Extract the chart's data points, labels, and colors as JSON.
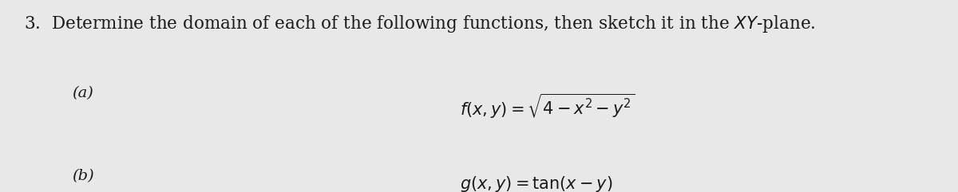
{
  "background_color": "#e8e8e8",
  "title_text": "3.  Determine the domain of each of the following functions, then sketch it in the $XY$-plane.",
  "part_a_label": "(a)",
  "part_b_label": "(b)",
  "part_a_formula": "$f(x, y) = \\sqrt{4 - x^2 - y^2}$",
  "part_b_formula": "$g(x, y) = \\tan(x - y)$",
  "title_fontsize": 15.5,
  "label_fontsize": 14,
  "formula_fontsize": 15,
  "text_color": "#1a1a1a",
  "fig_width": 12.0,
  "fig_height": 2.41
}
